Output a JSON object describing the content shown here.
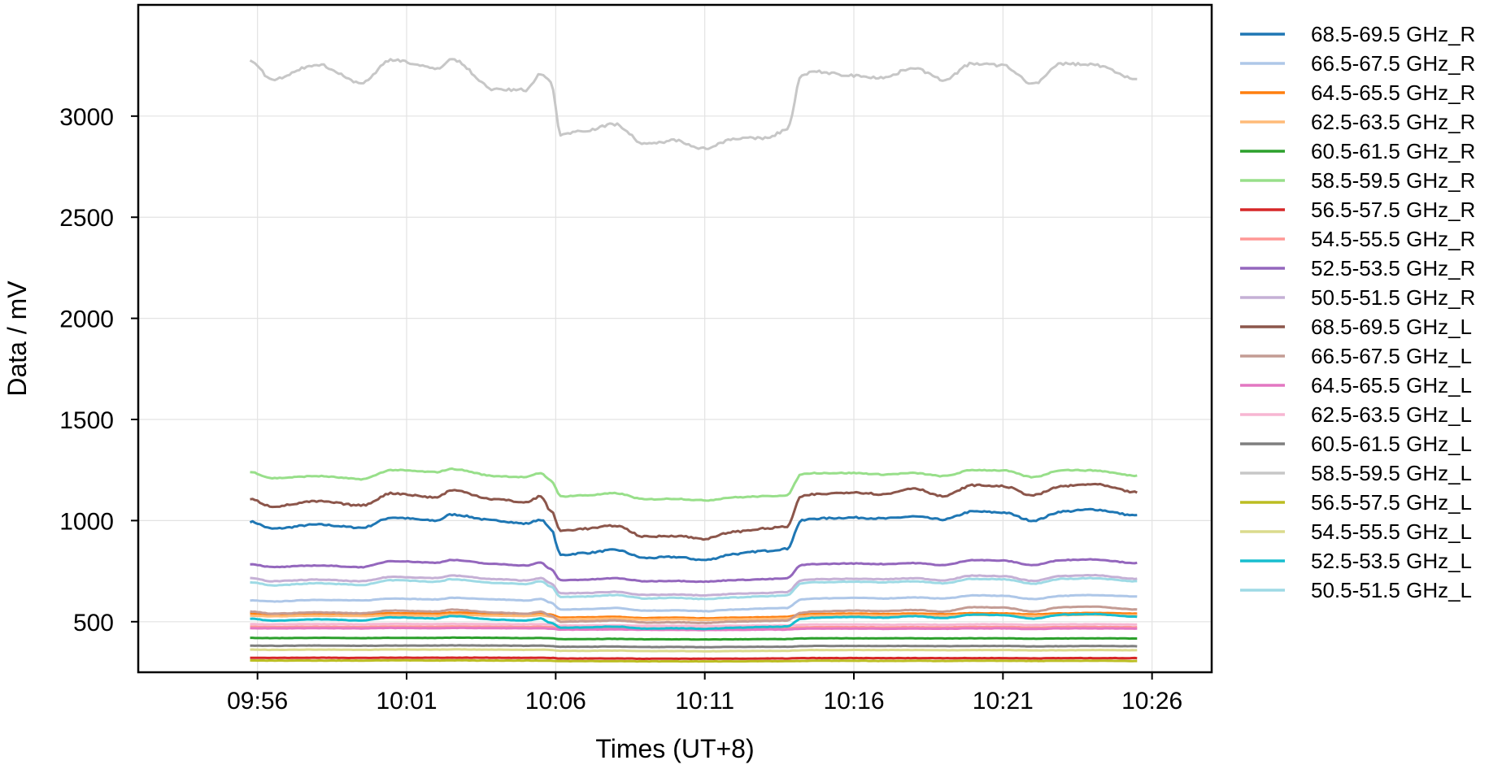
{
  "chart_data": {
    "type": "line",
    "title": "",
    "xlabel": "Times (UT+8)",
    "ylabel": "Data / mV",
    "x_unit": "time (UT+8, HH:MM)",
    "xlim": [
      "09:52",
      "10:28"
    ],
    "ylim": [
      250,
      3550
    ],
    "x_ticks": [
      "09:56",
      "10:01",
      "10:06",
      "10:11",
      "10:16",
      "10:21",
      "10:26"
    ],
    "y_ticks": [
      500,
      1000,
      1500,
      2000,
      2500,
      3000
    ],
    "grid": true,
    "legend_position": "outside right",
    "x_start": "09:55:45",
    "x_end": "10:25:30",
    "x_keypoints": [
      "09:55:45",
      "09:56:30",
      "09:58:00",
      "09:59:30",
      "10:00:30",
      "10:02:00",
      "10:02:30",
      "10:04:00",
      "10:05:00",
      "10:05:30",
      "10:05:50",
      "10:06:10",
      "10:07:00",
      "10:08:00",
      "10:09:00",
      "10:10:00",
      "10:11:00",
      "10:12:00",
      "10:13:00",
      "10:13:45",
      "10:14:15",
      "10:14:40",
      "10:16:00",
      "10:17:00",
      "10:18:00",
      "10:19:00",
      "10:20:00",
      "10:21:00",
      "10:22:00",
      "10:23:00",
      "10:24:00",
      "10:25:30"
    ],
    "series": [
      {
        "name": "68.5-69.5 GHz_R",
        "color": "#1f77b4",
        "values": [
          995,
          960,
          980,
          965,
          1015,
          1000,
          1030,
          1000,
          985,
          1005,
          960,
          830,
          840,
          855,
          815,
          820,
          805,
          835,
          850,
          860,
          1000,
          1010,
          1015,
          1010,
          1020,
          1005,
          1045,
          1040,
          1000,
          1045,
          1055,
          1025
        ]
      },
      {
        "name": "66.5-67.5 GHz_R",
        "color": "#aec7e8",
        "values": [
          605,
          600,
          608,
          605,
          615,
          610,
          618,
          610,
          605,
          612,
          595,
          560,
          562,
          568,
          555,
          556,
          552,
          560,
          565,
          568,
          610,
          615,
          618,
          615,
          620,
          615,
          630,
          628,
          612,
          628,
          632,
          625
        ]
      },
      {
        "name": "64.5-65.5 GHz_R",
        "color": "#ff7f0e",
        "values": [
          540,
          536,
          540,
          538,
          542,
          540,
          545,
          540,
          538,
          542,
          535,
          520,
          522,
          524,
          518,
          520,
          517,
          520,
          522,
          524,
          535,
          538,
          540,
          538,
          540,
          537,
          542,
          541,
          536,
          541,
          543,
          540
        ]
      },
      {
        "name": "62.5-63.5 GHz_R",
        "color": "#ffbb78",
        "values": [
          530,
          527,
          530,
          528,
          532,
          530,
          535,
          530,
          528,
          532,
          525,
          512,
          514,
          516,
          510,
          512,
          509,
          512,
          514,
          516,
          527,
          530,
          532,
          530,
          532,
          529,
          534,
          533,
          528,
          533,
          535,
          532
        ]
      },
      {
        "name": "60.5-61.5 GHz_R",
        "color": "#2ca02c",
        "values": [
          420,
          419,
          420,
          419,
          420,
          420,
          421,
          420,
          419,
          420,
          418,
          414,
          414,
          415,
          413,
          413,
          412,
          413,
          414,
          414,
          417,
          418,
          418,
          418,
          418,
          417,
          418,
          418,
          416,
          417,
          418,
          417
        ]
      },
      {
        "name": "58.5-59.5 GHz_R",
        "color": "#98df8a",
        "values": [
          1240,
          1210,
          1220,
          1205,
          1250,
          1240,
          1255,
          1220,
          1215,
          1235,
          1200,
          1120,
          1125,
          1135,
          1105,
          1108,
          1100,
          1115,
          1120,
          1125,
          1230,
          1235,
          1235,
          1228,
          1235,
          1220,
          1250,
          1248,
          1215,
          1250,
          1248,
          1222
        ]
      },
      {
        "name": "56.5-57.5 GHz_R",
        "color": "#d62728",
        "values": [
          322,
          321,
          322,
          321,
          322,
          322,
          322,
          322,
          321,
          322,
          321,
          318,
          318,
          318,
          317,
          317,
          317,
          317,
          318,
          318,
          320,
          320,
          320,
          320,
          320,
          320,
          320,
          320,
          319,
          320,
          320,
          320
        ]
      },
      {
        "name": "54.5-55.5 GHz_R",
        "color": "#ff9896",
        "values": [
          475,
          474,
          475,
          474,
          476,
          475,
          476,
          475,
          474,
          475,
          473,
          468,
          468,
          469,
          467,
          467,
          466,
          467,
          468,
          468,
          472,
          473,
          473,
          472,
          473,
          472,
          474,
          474,
          471,
          474,
          474,
          473
        ]
      },
      {
        "name": "52.5-53.5 GHz_R",
        "color": "#9467bd",
        "values": [
          785,
          770,
          778,
          770,
          800,
          792,
          805,
          785,
          778,
          792,
          760,
          705,
          708,
          715,
          700,
          702,
          698,
          706,
          710,
          714,
          780,
          785,
          788,
          785,
          790,
          780,
          805,
          802,
          780,
          805,
          808,
          790
        ]
      },
      {
        "name": "50.5-51.5 GHz_R",
        "color": "#c5b0d5",
        "values": [
          715,
          700,
          708,
          700,
          722,
          716,
          728,
          710,
          704,
          716,
          690,
          640,
          642,
          648,
          632,
          634,
          630,
          638,
          642,
          646,
          705,
          710,
          712,
          710,
          715,
          705,
          728,
          725,
          702,
          726,
          730,
          712
        ]
      },
      {
        "name": "68.5-69.5 GHz_L",
        "color": "#8c564b",
        "values": [
          1105,
          1070,
          1095,
          1075,
          1135,
          1115,
          1150,
          1105,
          1090,
          1120,
          1050,
          950,
          960,
          975,
          920,
          925,
          910,
          945,
          960,
          970,
          1120,
          1130,
          1140,
          1130,
          1160,
          1120,
          1175,
          1170,
          1125,
          1170,
          1180,
          1140
        ]
      },
      {
        "name": "66.5-67.5 GHz_L",
        "color": "#c49c94",
        "values": [
          550,
          540,
          546,
          542,
          555,
          550,
          560,
          545,
          540,
          550,
          530,
          500,
          502,
          506,
          496,
          497,
          494,
          500,
          503,
          506,
          545,
          550,
          555,
          552,
          558,
          550,
          572,
          570,
          550,
          572,
          575,
          560
        ]
      },
      {
        "name": "64.5-65.5 GHz_L",
        "color": "#e377c2",
        "values": [
          468,
          467,
          468,
          467,
          469,
          468,
          469,
          468,
          467,
          468,
          466,
          461,
          461,
          462,
          460,
          460,
          459,
          460,
          461,
          461,
          465,
          466,
          466,
          465,
          466,
          465,
          467,
          467,
          464,
          467,
          467,
          466
        ]
      },
      {
        "name": "62.5-63.5 GHz_L",
        "color": "#f7b6d2",
        "values": [
          488,
          487,
          488,
          487,
          489,
          488,
          489,
          488,
          487,
          488,
          486,
          481,
          481,
          482,
          480,
          480,
          479,
          480,
          481,
          481,
          485,
          486,
          486,
          485,
          486,
          485,
          487,
          487,
          484,
          487,
          487,
          486
        ]
      },
      {
        "name": "60.5-61.5 GHz_L",
        "color": "#7f7f7f",
        "values": [
          382,
          381,
          382,
          381,
          382,
          382,
          383,
          382,
          381,
          382,
          380,
          376,
          376,
          377,
          375,
          375,
          374,
          375,
          376,
          376,
          379,
          380,
          380,
          380,
          380,
          379,
          380,
          380,
          378,
          379,
          380,
          379
        ]
      },
      {
        "name": "58.5-59.5 GHz_L",
        "color": "#c7c7c7",
        "values": [
          3270,
          3180,
          3255,
          3165,
          3280,
          3235,
          3280,
          3130,
          3130,
          3210,
          3170,
          2910,
          2930,
          2960,
          2860,
          2880,
          2840,
          2890,
          2890,
          2930,
          3200,
          3220,
          3200,
          3190,
          3240,
          3180,
          3260,
          3250,
          3160,
          3260,
          3255,
          3185
        ]
      },
      {
        "name": "56.5-57.5 GHz_L",
        "color": "#bcbd22",
        "values": [
          308,
          308,
          308,
          308,
          309,
          308,
          309,
          308,
          308,
          308,
          307,
          305,
          305,
          305,
          304,
          304,
          304,
          304,
          305,
          305,
          306,
          307,
          307,
          306,
          307,
          306,
          307,
          307,
          306,
          307,
          307,
          306
        ]
      },
      {
        "name": "54.5-55.5 GHz_L",
        "color": "#dbdb8d",
        "values": [
          362,
          361,
          362,
          361,
          363,
          362,
          363,
          362,
          361,
          362,
          360,
          356,
          356,
          357,
          355,
          355,
          354,
          355,
          356,
          356,
          359,
          360,
          360,
          360,
          360,
          359,
          360,
          360,
          358,
          359,
          360,
          359
        ]
      },
      {
        "name": "52.5-53.5 GHz_L",
        "color": "#17becf",
        "values": [
          515,
          505,
          512,
          506,
          522,
          516,
          528,
          510,
          506,
          516,
          495,
          470,
          472,
          476,
          466,
          468,
          465,
          470,
          474,
          476,
          515,
          520,
          524,
          520,
          528,
          518,
          535,
          533,
          515,
          535,
          538,
          525
        ]
      },
      {
        "name": "50.5-51.5 GHz_L",
        "color": "#9edae5",
        "values": [
          695,
          680,
          690,
          682,
          705,
          698,
          710,
          692,
          686,
          700,
          675,
          622,
          625,
          632,
          615,
          618,
          612,
          620,
          626,
          630,
          690,
          695,
          698,
          695,
          700,
          690,
          712,
          710,
          688,
          712,
          715,
          700
        ]
      }
    ]
  }
}
